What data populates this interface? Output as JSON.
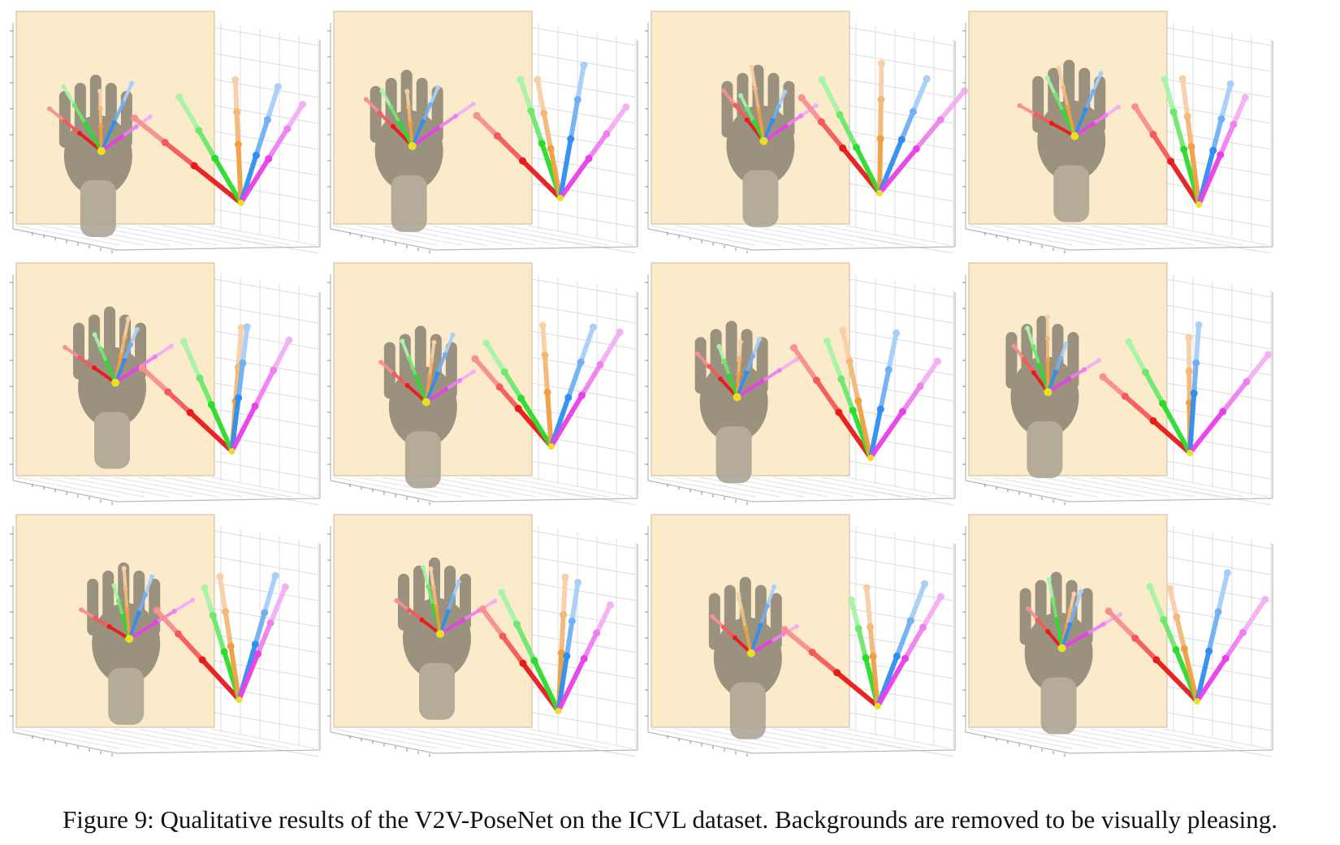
{
  "figure": {
    "caption": "Figure 9: Qualitative results of the V2V-PoseNet on the ICVL dataset. Backgrounds are removed to be visually pleasing.",
    "panel_count": 12,
    "grid": {
      "rows": 3,
      "cols": 4
    }
  },
  "colors": {
    "panel_background": "#fcebca",
    "hand_depth": "#8a8272",
    "axis_lines": "#b8b8b8",
    "palm_joint": "#e8e020",
    "thumb": [
      "#e81b1b",
      "#f45a5a",
      "#f79090"
    ],
    "index": [
      "#2cdc2c",
      "#6ee86e",
      "#a8f4a8"
    ],
    "middle": [
      "#f0a040",
      "#f4b878",
      "#f8d0a8"
    ],
    "ring": [
      "#2f8ef0",
      "#70b0f4",
      "#a8cff8"
    ],
    "little": [
      "#e840e8",
      "#f080f0",
      "#f4b0f4"
    ]
  }
}
